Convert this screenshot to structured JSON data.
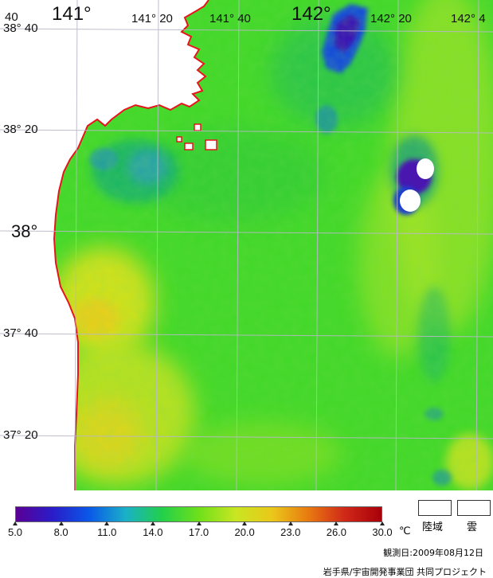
{
  "map": {
    "grid_longitude_labels": [
      {
        "text": "40",
        "size": "small"
      },
      {
        "text": "141°",
        "size": "big"
      },
      {
        "text": "141° 20",
        "size": "small"
      },
      {
        "text": "141° 40",
        "size": "small"
      },
      {
        "text": "142°",
        "size": "big"
      },
      {
        "text": "142° 20",
        "size": "small"
      },
      {
        "text": "142° 4",
        "size": "small"
      }
    ],
    "grid_latitude_labels": [
      {
        "text": "38° 40",
        "size": "small"
      },
      {
        "text": "38° 20",
        "size": "small"
      },
      {
        "text": "38°",
        "size": "big"
      },
      {
        "text": "37° 40",
        "size": "small"
      },
      {
        "text": "37° 20",
        "size": "small"
      }
    ],
    "colors": {
      "land": "#ffffff",
      "coastline": "#e8141c",
      "grid": "#b8b8c8",
      "sea_base": "#44d82a"
    }
  },
  "legend": {
    "scale_colors": [
      "#5a0096",
      "#2a1cc8",
      "#0a58e8",
      "#1ab0c8",
      "#22d04a",
      "#6ee01a",
      "#c8e622",
      "#eac81a",
      "#e87a10",
      "#d02818",
      "#a8000a"
    ],
    "ticks": [
      "5.0",
      "8.0",
      "11.0",
      "14.0",
      "17.0",
      "20.0",
      "23.0",
      "26.0",
      "30.0"
    ],
    "unit": "℃",
    "land_label": "陸域",
    "cloud_label": "雲"
  },
  "observation_date": "観測日:2009年08月12日",
  "credit": "岩手県/宇宙開発事業団 共同プロジェクト"
}
